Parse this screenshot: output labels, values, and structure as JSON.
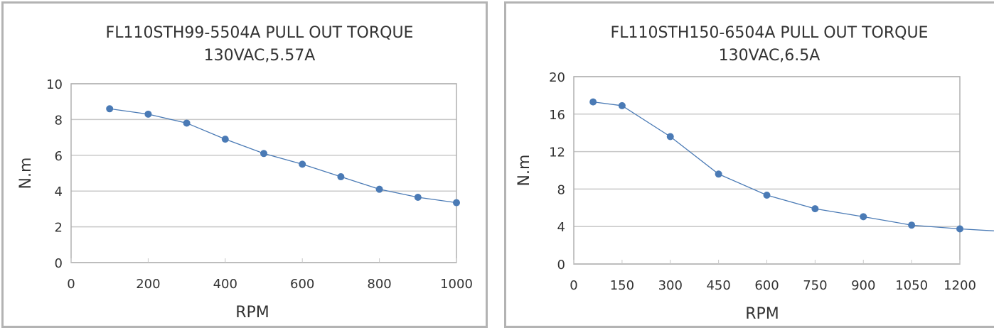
{
  "chart_data": [
    {
      "type": "line",
      "title": "FL110STH99-5504A    PULL OUT TORQUE",
      "subtitle": "130VAC,5.57A",
      "xlabel": "RPM",
      "ylabel": "N.m",
      "xlim": [
        0,
        1000
      ],
      "ylim": [
        0,
        10
      ],
      "xticks": [
        0,
        200,
        400,
        600,
        800,
        1000
      ],
      "yticks": [
        0,
        2,
        4,
        6,
        8,
        10
      ],
      "grid": "horizontal",
      "marker_color": "#4a7ab5",
      "line_color": "#4a7ab5",
      "x": [
        100,
        200,
        300,
        400,
        500,
        600,
        700,
        800,
        900,
        1000
      ],
      "y": [
        8.6,
        8.3,
        7.8,
        6.9,
        6.1,
        5.5,
        4.8,
        4.1,
        3.65,
        3.35
      ]
    },
    {
      "type": "line",
      "title": "FL110STH150-6504A   PULL OUT TORQUE",
      "subtitle": "130VAC,6.5A",
      "xlabel": "RPM",
      "ylabel": "N.m",
      "xlim": [
        0,
        1200
      ],
      "ylim": [
        0,
        20
      ],
      "xticks": [
        0,
        150,
        300,
        450,
        600,
        750,
        900,
        1050,
        1200
      ],
      "yticks": [
        0,
        4,
        8,
        12,
        16,
        20
      ],
      "grid": "horizontal",
      "marker_color": "#4a7ab5",
      "line_color": "#4a7ab5",
      "x": [
        60,
        150,
        300,
        450,
        600,
        750,
        900,
        1050,
        1200
      ],
      "y": [
        17.3,
        16.9,
        13.6,
        9.6,
        7.35,
        5.9,
        5.05,
        4.15,
        3.75
      ]
    }
  ]
}
